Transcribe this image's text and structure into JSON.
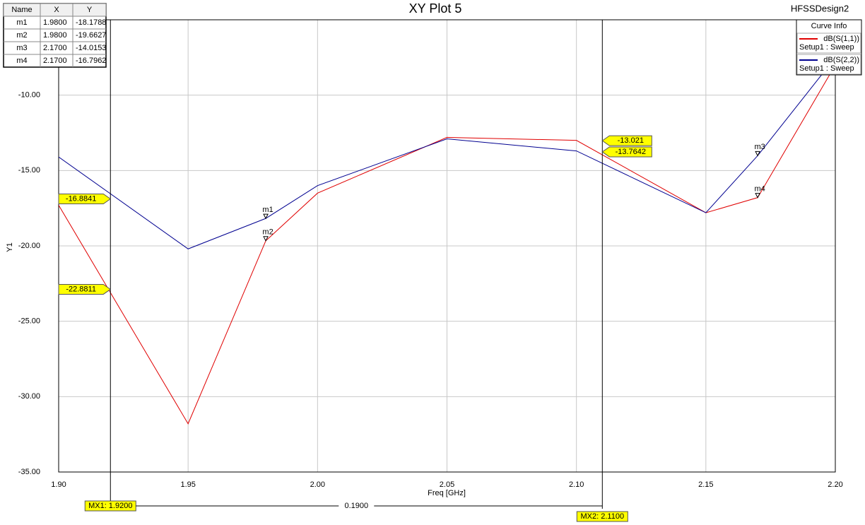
{
  "chart_data": {
    "type": "line",
    "title": "XY Plot 5",
    "design": "HFSSDesign2",
    "x_label": "Freq [GHz]",
    "y_label": "Y1",
    "x": [
      1.9,
      1.95,
      1.98,
      2.0,
      2.05,
      2.1,
      2.15,
      2.17,
      2.2
    ],
    "series": [
      {
        "name": "dB(S(1,1))",
        "setup": "Setup1 : Sweep",
        "color": "#e00000",
        "values": [
          -17.3,
          -31.8,
          -19.6627,
          -16.5,
          -12.8,
          -13.0,
          -17.8,
          -16.7962,
          -8.0
        ]
      },
      {
        "name": "dB(S(2,2))",
        "setup": "Setup1 : Sweep",
        "color": "#000090",
        "values": [
          -14.1,
          -20.2,
          -18.1788,
          -16.0,
          -12.9,
          -13.7,
          -17.8,
          -14.0153,
          -7.5
        ]
      }
    ],
    "xlim": [
      1.9,
      2.2
    ],
    "ylim": [
      -35,
      -5
    ],
    "xticks": [
      {
        "value": 1.9,
        "label": "1.90"
      },
      {
        "value": 1.95,
        "label": "1.95"
      },
      {
        "value": 2.0,
        "label": "2.00"
      },
      {
        "value": 2.05,
        "label": "2.05"
      },
      {
        "value": 2.1,
        "label": "2.10"
      },
      {
        "value": 2.15,
        "label": "2.15"
      },
      {
        "value": 2.2,
        "label": "2.20"
      }
    ],
    "yticks": [
      {
        "value": -10,
        "label": "-10.00"
      },
      {
        "value": -15,
        "label": "-15.00"
      },
      {
        "value": -20,
        "label": "-20.00"
      },
      {
        "value": -25,
        "label": "-25.00"
      },
      {
        "value": -30,
        "label": "-30.00"
      },
      {
        "value": -35,
        "label": "-35.00"
      }
    ],
    "grid": true,
    "legend_title": "Curve Info",
    "marker_table": {
      "columns": [
        "Name",
        "X",
        "Y"
      ],
      "markers": [
        {
          "name": "m1",
          "series": 1,
          "x": {
            "value": 1.98,
            "label": "1.9800"
          },
          "y": -18.1788
        },
        {
          "name": "m2",
          "series": 0,
          "x": {
            "value": 1.98,
            "label": "1.9800"
          },
          "y": -19.6627
        },
        {
          "name": "m3",
          "series": 1,
          "x": {
            "value": 2.17,
            "label": "2.1700"
          },
          "y": -14.0153
        },
        {
          "name": "m4",
          "series": 0,
          "x": {
            "value": 2.17,
            "label": "2.1700"
          },
          "y": -16.7962
        }
      ]
    },
    "x_markers": [
      {
        "x": {
          "value": 1.92,
          "label": "MX1: 1.9200"
        },
        "y_values": [
          -16.8841,
          -22.8811
        ],
        "side": "left"
      },
      {
        "x": {
          "value": 2.11,
          "label": "MX2: 2.1100"
        },
        "y_values": [
          -13.021,
          -13.7642
        ],
        "side": "right"
      }
    ],
    "x_delta": {
      "value": 0.19,
      "label": "0.1900"
    }
  }
}
